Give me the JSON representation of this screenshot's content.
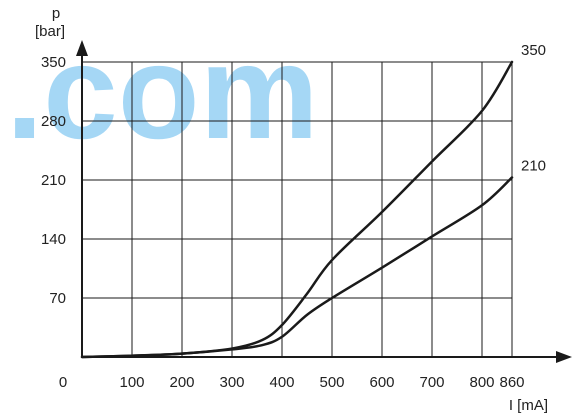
{
  "chart_data": {
    "type": "line",
    "xlabel": "I [mA]",
    "ylabel_symbol": "p",
    "ylabel_unit": "[bar]",
    "x_ticks": [
      0,
      100,
      200,
      300,
      400,
      500,
      600,
      700,
      800,
      860
    ],
    "y_ticks": [
      70,
      140,
      210,
      280,
      350
    ],
    "xlim": [
      0,
      860
    ],
    "ylim": [
      0,
      350
    ],
    "grid": true,
    "series": [
      {
        "name": "350",
        "points": [
          [
            0,
            0
          ],
          [
            100,
            1.5
          ],
          [
            200,
            4
          ],
          [
            300,
            10
          ],
          [
            360,
            20
          ],
          [
            400,
            38
          ],
          [
            450,
            75
          ],
          [
            500,
            115
          ],
          [
            600,
            172
          ],
          [
            700,
            232
          ],
          [
            800,
            292
          ],
          [
            860,
            350
          ]
        ]
      },
      {
        "name": "210",
        "points": [
          [
            0,
            0
          ],
          [
            100,
            1.5
          ],
          [
            200,
            4
          ],
          [
            300,
            9
          ],
          [
            360,
            14
          ],
          [
            400,
            24
          ],
          [
            450,
            50
          ],
          [
            500,
            70
          ],
          [
            600,
            106
          ],
          [
            700,
            143
          ],
          [
            800,
            180
          ],
          [
            860,
            213
          ]
        ]
      }
    ],
    "watermark": ".com",
    "colors": {
      "line": "#1a1a1a",
      "grid": "#1a1a1a",
      "watermark": "#8fcdf2"
    }
  }
}
